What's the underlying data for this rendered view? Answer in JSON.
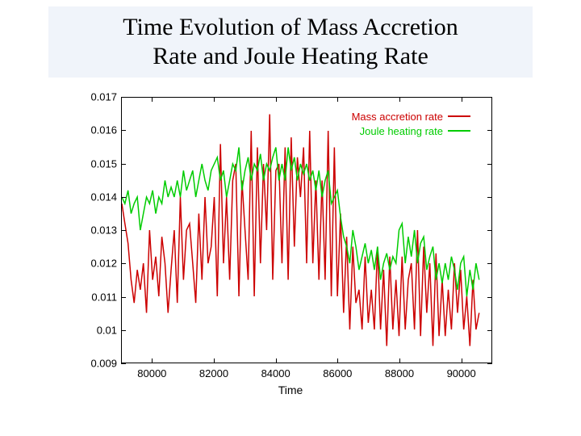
{
  "title": {
    "line1": "Time Evolution of Mass Accretion",
    "line2": "Rate and Joule Heating Rate",
    "fontsize": 30,
    "font_family": "Times New Roman",
    "background_color": "#f0f4fa",
    "text_color": "#000000"
  },
  "chart": {
    "type": "line",
    "background_color": "#ffffff",
    "border_color": "#000000",
    "xlabel": "Time",
    "label_fontsize": 14,
    "tick_fontsize": 13,
    "xlim": [
      79000,
      91000
    ],
    "ylim": [
      0.009,
      0.017
    ],
    "xticks": [
      80000,
      82000,
      84000,
      86000,
      88000,
      90000
    ],
    "yticks": [
      0.009,
      0.01,
      0.011,
      0.012,
      0.013,
      0.014,
      0.015,
      0.016,
      0.017
    ],
    "ytick_labels": [
      "0.009",
      "0.01",
      "0.011",
      "0.012",
      "0.013",
      "0.014",
      "0.015",
      "0.016",
      "0.017"
    ],
    "legend": {
      "position": "top-right",
      "items": [
        {
          "label": "Mass accretion rate",
          "color": "#cc0000"
        },
        {
          "label": "Joule heating rate",
          "color": "#00cc00"
        }
      ]
    },
    "series": [
      {
        "name": "Mass accretion rate",
        "color": "#cc0000",
        "line_width": 1.5,
        "x": [
          79000,
          79100,
          79200,
          79300,
          79400,
          79500,
          79600,
          79700,
          79800,
          79900,
          80000,
          80100,
          80200,
          80300,
          80400,
          80500,
          80600,
          80700,
          80800,
          80900,
          81000,
          81100,
          81200,
          81300,
          81400,
          81500,
          81600,
          81700,
          81800,
          81900,
          82000,
          82100,
          82200,
          82300,
          82400,
          82500,
          82600,
          82700,
          82800,
          82900,
          83000,
          83100,
          83200,
          83300,
          83400,
          83500,
          83600,
          83700,
          83800,
          83900,
          84000,
          84100,
          84200,
          84300,
          84400,
          84500,
          84600,
          84700,
          84800,
          84900,
          85000,
          85100,
          85200,
          85300,
          85400,
          85500,
          85600,
          85700,
          85800,
          85900,
          86000,
          86100,
          86200,
          86300,
          86400,
          86500,
          86600,
          86700,
          86800,
          86900,
          87000,
          87100,
          87200,
          87300,
          87400,
          87500,
          87600,
          87700,
          87800,
          87900,
          88000,
          88100,
          88200,
          88300,
          88400,
          88500,
          88600,
          88700,
          88800,
          88900,
          89000,
          89100,
          89200,
          89300,
          89400,
          89500,
          89600,
          89700,
          89800,
          89900,
          90000,
          90100,
          90200,
          90300,
          90400,
          90500,
          90600
        ],
        "y": [
          0.0138,
          0.0132,
          0.0126,
          0.0115,
          0.0108,
          0.0118,
          0.0112,
          0.012,
          0.0105,
          0.013,
          0.0115,
          0.0122,
          0.011,
          0.0128,
          0.012,
          0.0105,
          0.0118,
          0.013,
          0.0108,
          0.014,
          0.0115,
          0.013,
          0.0132,
          0.012,
          0.0108,
          0.0135,
          0.0115,
          0.014,
          0.012,
          0.0125,
          0.014,
          0.011,
          0.0156,
          0.012,
          0.014,
          0.0115,
          0.0145,
          0.015,
          0.011,
          0.0145,
          0.013,
          0.0115,
          0.016,
          0.011,
          0.0155,
          0.012,
          0.015,
          0.013,
          0.0165,
          0.0115,
          0.0148,
          0.015,
          0.012,
          0.0155,
          0.0115,
          0.0158,
          0.0125,
          0.0152,
          0.014,
          0.0155,
          0.012,
          0.016,
          0.012,
          0.0145,
          0.0115,
          0.0145,
          0.0115,
          0.016,
          0.011,
          0.0155,
          0.011,
          0.0135,
          0.0105,
          0.0128,
          0.01,
          0.0125,
          0.0108,
          0.0112,
          0.01,
          0.0122,
          0.0102,
          0.0112,
          0.01,
          0.0125,
          0.01,
          0.0118,
          0.0095,
          0.0122,
          0.01,
          0.0115,
          0.0098,
          0.0122,
          0.01,
          0.0115,
          0.012,
          0.01,
          0.013,
          0.0098,
          0.0125,
          0.0105,
          0.012,
          0.0095,
          0.0123,
          0.0098,
          0.0115,
          0.0098,
          0.0112,
          0.01,
          0.012,
          0.0105,
          0.0118,
          0.01,
          0.011,
          0.0095,
          0.0115,
          0.01,
          0.0105
        ]
      },
      {
        "name": "Joule heating rate",
        "color": "#00cc00",
        "line_width": 1.5,
        "x": [
          79000,
          79100,
          79200,
          79300,
          79400,
          79500,
          79600,
          79700,
          79800,
          79900,
          80000,
          80100,
          80200,
          80300,
          80400,
          80500,
          80600,
          80700,
          80800,
          80900,
          81000,
          81100,
          81200,
          81300,
          81400,
          81500,
          81600,
          81700,
          81800,
          81900,
          82000,
          82100,
          82200,
          82300,
          82400,
          82500,
          82600,
          82700,
          82800,
          82900,
          83000,
          83100,
          83200,
          83300,
          83400,
          83500,
          83600,
          83700,
          83800,
          83900,
          84000,
          84100,
          84200,
          84300,
          84400,
          84500,
          84600,
          84700,
          84800,
          84900,
          85000,
          85100,
          85200,
          85300,
          85400,
          85500,
          85600,
          85700,
          85800,
          85900,
          86000,
          86100,
          86200,
          86300,
          86400,
          86500,
          86600,
          86700,
          86800,
          86900,
          87000,
          87100,
          87200,
          87300,
          87400,
          87500,
          87600,
          87700,
          87800,
          87900,
          88000,
          88100,
          88200,
          88300,
          88400,
          88500,
          88600,
          88700,
          88800,
          88900,
          89000,
          89100,
          89200,
          89300,
          89400,
          89500,
          89600,
          89700,
          89800,
          89900,
          90000,
          90100,
          90200,
          90300,
          90400,
          90500,
          90600
        ],
        "y": [
          0.014,
          0.0138,
          0.0142,
          0.0135,
          0.0138,
          0.014,
          0.013,
          0.0135,
          0.014,
          0.0138,
          0.0142,
          0.0135,
          0.014,
          0.0138,
          0.0145,
          0.014,
          0.0143,
          0.014,
          0.0145,
          0.014,
          0.0148,
          0.0142,
          0.0145,
          0.0148,
          0.014,
          0.0145,
          0.015,
          0.0145,
          0.0142,
          0.0148,
          0.015,
          0.0152,
          0.0145,
          0.0148,
          0.014,
          0.0145,
          0.015,
          0.0148,
          0.0155,
          0.0142,
          0.0148,
          0.0152,
          0.0145,
          0.015,
          0.0148,
          0.0153,
          0.0145,
          0.015,
          0.0148,
          0.0152,
          0.0155,
          0.0145,
          0.015,
          0.0145,
          0.0155,
          0.0148,
          0.0152,
          0.0145,
          0.015,
          0.0147,
          0.015,
          0.0145,
          0.0148,
          0.0142,
          0.0148,
          0.014,
          0.0145,
          0.0148,
          0.0138,
          0.014,
          0.0142,
          0.0134,
          0.0128,
          0.0125,
          0.012,
          0.013,
          0.0125,
          0.0118,
          0.0122,
          0.0126,
          0.012,
          0.0124,
          0.0118,
          0.0125,
          0.0115,
          0.012,
          0.0123,
          0.0118,
          0.0122,
          0.012,
          0.013,
          0.0132,
          0.012,
          0.0128,
          0.0122,
          0.013,
          0.012,
          0.0126,
          0.0128,
          0.0118,
          0.0122,
          0.0125,
          0.0115,
          0.012,
          0.0114,
          0.012,
          0.0115,
          0.0122,
          0.0118,
          0.0112,
          0.012,
          0.0122,
          0.011,
          0.0118,
          0.0112,
          0.012,
          0.0115
        ]
      }
    ]
  }
}
